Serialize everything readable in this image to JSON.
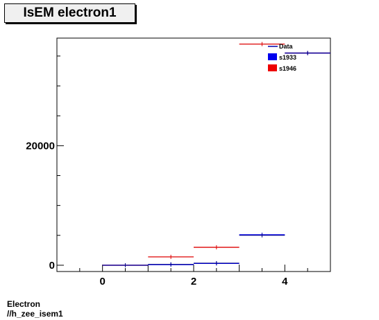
{
  "title": "IsEM electron1",
  "caption": [
    "Electron",
    "//h_zee_isem1"
  ],
  "chart_data": {
    "type": "histogram",
    "xlim": [
      -1,
      5
    ],
    "ylim": [
      -1050,
      38000
    ],
    "xticks": [
      0,
      2,
      4
    ],
    "yticks": [
      0,
      20000
    ],
    "bin_edges": [
      0,
      1,
      2,
      3,
      4,
      5
    ],
    "legend": [
      {
        "label": "Data",
        "color": "#0000aa",
        "style": "line"
      },
      {
        "label": "s1933",
        "color": "#0000ee",
        "style": "box"
      },
      {
        "label": "s1946",
        "color": "#ee0000",
        "style": "box"
      }
    ],
    "series": [
      {
        "name": "s1946",
        "color": "#dd0000",
        "values": [
          0,
          1400,
          3000,
          37000,
          35500
        ]
      },
      {
        "name": "s1933",
        "color": "#0000ee",
        "values": [
          0,
          100,
          300,
          5100,
          35500
        ]
      },
      {
        "name": "Data",
        "color": "#000088",
        "values": [
          0,
          150,
          350,
          5000,
          35500
        ]
      }
    ]
  }
}
